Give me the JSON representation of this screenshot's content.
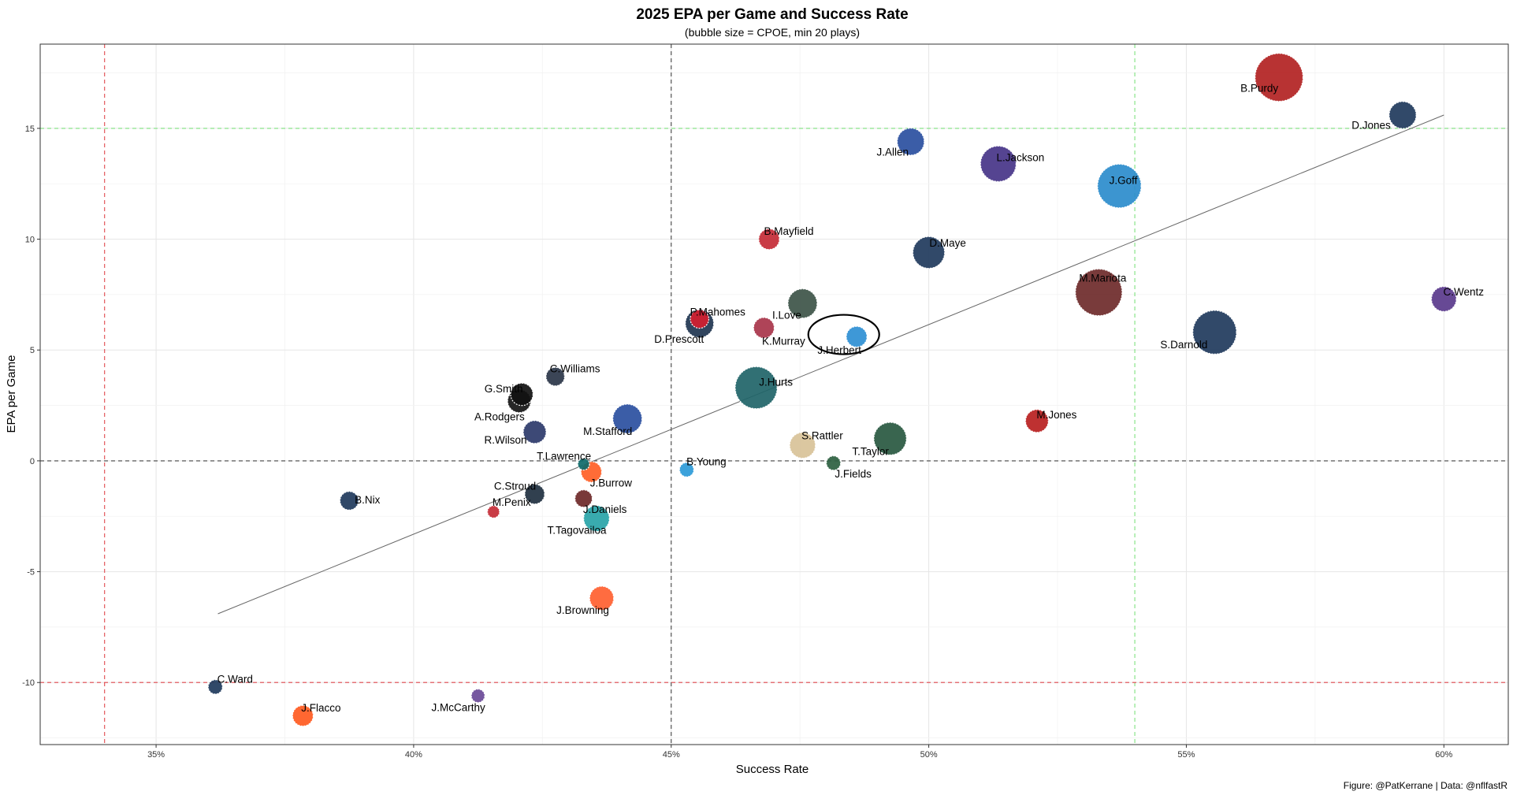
{
  "chart_data": {
    "type": "scatter",
    "title": "2025 EPA per Game and Success Rate",
    "subtitle": "(bubble size = CPOE, min 20 plays)",
    "xlabel": "Success Rate",
    "ylabel": "EPA per Game",
    "caption": "Figure: @PatKerrane | Data: @nflfastR",
    "xlim": [
      0.3275,
      0.6125
    ],
    "ylim": [
      -12.8,
      18.8
    ],
    "x_ticks": [
      0.35,
      0.4,
      0.45,
      0.5,
      0.55,
      0.6
    ],
    "x_tick_labels": [
      "35%",
      "40%",
      "45%",
      "50%",
      "55%",
      "60%"
    ],
    "y_ticks": [
      -10,
      -5,
      0,
      5,
      10,
      15
    ],
    "y_tick_labels": [
      "-10",
      "-5",
      "0",
      "5",
      "10",
      "15"
    ],
    "grid": true,
    "reference_lines": {
      "x_mean": 0.45,
      "y_mean": 0,
      "x_low": 0.34,
      "x_high": 0.54,
      "y_low": -10,
      "y_high": 15,
      "colors": {
        "mean": "#444444",
        "low": "#e0484d",
        "high": "#7ee27e"
      }
    },
    "trend_line": {
      "x": [
        0.362,
        0.6
      ],
      "y": [
        -6.9,
        15.6
      ],
      "color": "#666666"
    },
    "highlight": {
      "label": "J.Herbert",
      "x": 0.4835,
      "y": 5.7
    },
    "points": [
      {
        "label": "B.Purdy",
        "x": 0.568,
        "y": 17.3,
        "size": 9.4,
        "color": "#b22222"
      },
      {
        "label": "D.Jones",
        "x": 0.592,
        "y": 15.6,
        "size": 4.5,
        "color": "#203a5c"
      },
      {
        "label": "J.Allen",
        "x": 0.4965,
        "y": 14.4,
        "size": 4.5,
        "color": "#2a4fa0"
      },
      {
        "label": "L.Jackson",
        "x": 0.5135,
        "y": 13.4,
        "size": 6.5,
        "color": "#463488"
      },
      {
        "label": "J.Goff",
        "x": 0.537,
        "y": 12.4,
        "size": 8.4,
        "color": "#2b8ccc"
      },
      {
        "label": "B.Mayfield",
        "x": 0.469,
        "y": 10.0,
        "size": 3.0,
        "color": "#c42b36"
      },
      {
        "label": "D.Maye",
        "x": 0.5,
        "y": 9.4,
        "size": 5.6,
        "color": "#203a5c"
      },
      {
        "label": "M.Mariota",
        "x": 0.533,
        "y": 7.6,
        "size": 9.1,
        "color": "#6e2a2a"
      },
      {
        "label": "C.Wentz",
        "x": 0.6,
        "y": 7.3,
        "size": 4.0,
        "color": "#5a3a8c"
      },
      {
        "label": "I.Love",
        "x": 0.4755,
        "y": 7.1,
        "size": 5.0,
        "color": "#3d5448"
      },
      {
        "label": "P.Mahomes",
        "x": 0.4555,
        "y": 6.4,
        "size": 2.5,
        "color": "#d42030"
      },
      {
        "label": "D.Prescott",
        "x": 0.4555,
        "y": 6.2,
        "size": 4.8,
        "color": "#1f3550"
      },
      {
        "label": "K.Murray",
        "x": 0.468,
        "y": 6.0,
        "size": 3.0,
        "color": "#a8344a"
      },
      {
        "label": "S.Darnold",
        "x": 0.5555,
        "y": 5.8,
        "size": 8.4,
        "color": "#203a5c"
      },
      {
        "label": "J.Herbert",
        "x": 0.486,
        "y": 5.6,
        "size": 3.0,
        "color": "#2e8fd4"
      },
      {
        "label": "C.Williams",
        "x": 0.4275,
        "y": 3.8,
        "size": 2.5,
        "color": "#2a3548"
      },
      {
        "label": "J.Hurts",
        "x": 0.4665,
        "y": 3.3,
        "size": 8.0,
        "color": "#1f6468"
      },
      {
        "label": "G.Smith",
        "x": 0.421,
        "y": 3.0,
        "size": 3.4,
        "color": "#111111"
      },
      {
        "label": "A.Rodgers",
        "x": 0.4205,
        "y": 2.7,
        "size": 3.6,
        "color": "#151515"
      },
      {
        "label": "M.Stafford",
        "x": 0.4415,
        "y": 1.9,
        "size": 5.0,
        "color": "#2a4fa0"
      },
      {
        "label": "M.Jones",
        "x": 0.521,
        "y": 1.8,
        "size": 3.5,
        "color": "#b82020"
      },
      {
        "label": "R.Wilson",
        "x": 0.4235,
        "y": 1.3,
        "size": 3.5,
        "color": "#2c3a6a"
      },
      {
        "label": "T.Taylor",
        "x": 0.4925,
        "y": 1.0,
        "size": 5.8,
        "color": "#285840"
      },
      {
        "label": "S.Rattler",
        "x": 0.4755,
        "y": 0.7,
        "size": 4.2,
        "color": "#d8c298"
      },
      {
        "label": "J.Fields",
        "x": 0.4815,
        "y": -0.1,
        "size": 1.5,
        "color": "#2d6040"
      },
      {
        "label": "T.Lawrence",
        "x": 0.433,
        "y": -0.15,
        "size": 0.9,
        "color": "#0f6a6a"
      },
      {
        "label": "B.Young",
        "x": 0.453,
        "y": -0.4,
        "size": 1.5,
        "color": "#2b9ad8"
      },
      {
        "label": "J.Burrow",
        "x": 0.4345,
        "y": -0.5,
        "size": 3.0,
        "color": "#ff5f26"
      },
      {
        "label": "C.Stroud",
        "x": 0.4235,
        "y": -1.5,
        "size": 2.8,
        "color": "#203040"
      },
      {
        "label": "J.Daniels",
        "x": 0.433,
        "y": -1.7,
        "size": 2.2,
        "color": "#6e2828"
      },
      {
        "label": "B.Nix",
        "x": 0.3875,
        "y": -1.8,
        "size": 2.5,
        "color": "#203a5c"
      },
      {
        "label": "M.Penix",
        "x": 0.4155,
        "y": -2.3,
        "size": 1.0,
        "color": "#c42b36"
      },
      {
        "label": "T.Tagovailoa",
        "x": 0.4355,
        "y": -2.6,
        "size": 4.2,
        "color": "#28a4a8"
      },
      {
        "label": "J.Browning",
        "x": 0.4365,
        "y": -6.2,
        "size": 3.8,
        "color": "#ff6030"
      },
      {
        "label": "C.Ward",
        "x": 0.3615,
        "y": -10.2,
        "size": 1.5,
        "color": "#203a5c"
      },
      {
        "label": "J.McCarthy",
        "x": 0.4125,
        "y": -10.6,
        "size": 1.3,
        "color": "#6a4a98"
      },
      {
        "label": "J.Flacco",
        "x": 0.3785,
        "y": -11.5,
        "size": 3.0,
        "color": "#ff5a20"
      }
    ]
  }
}
